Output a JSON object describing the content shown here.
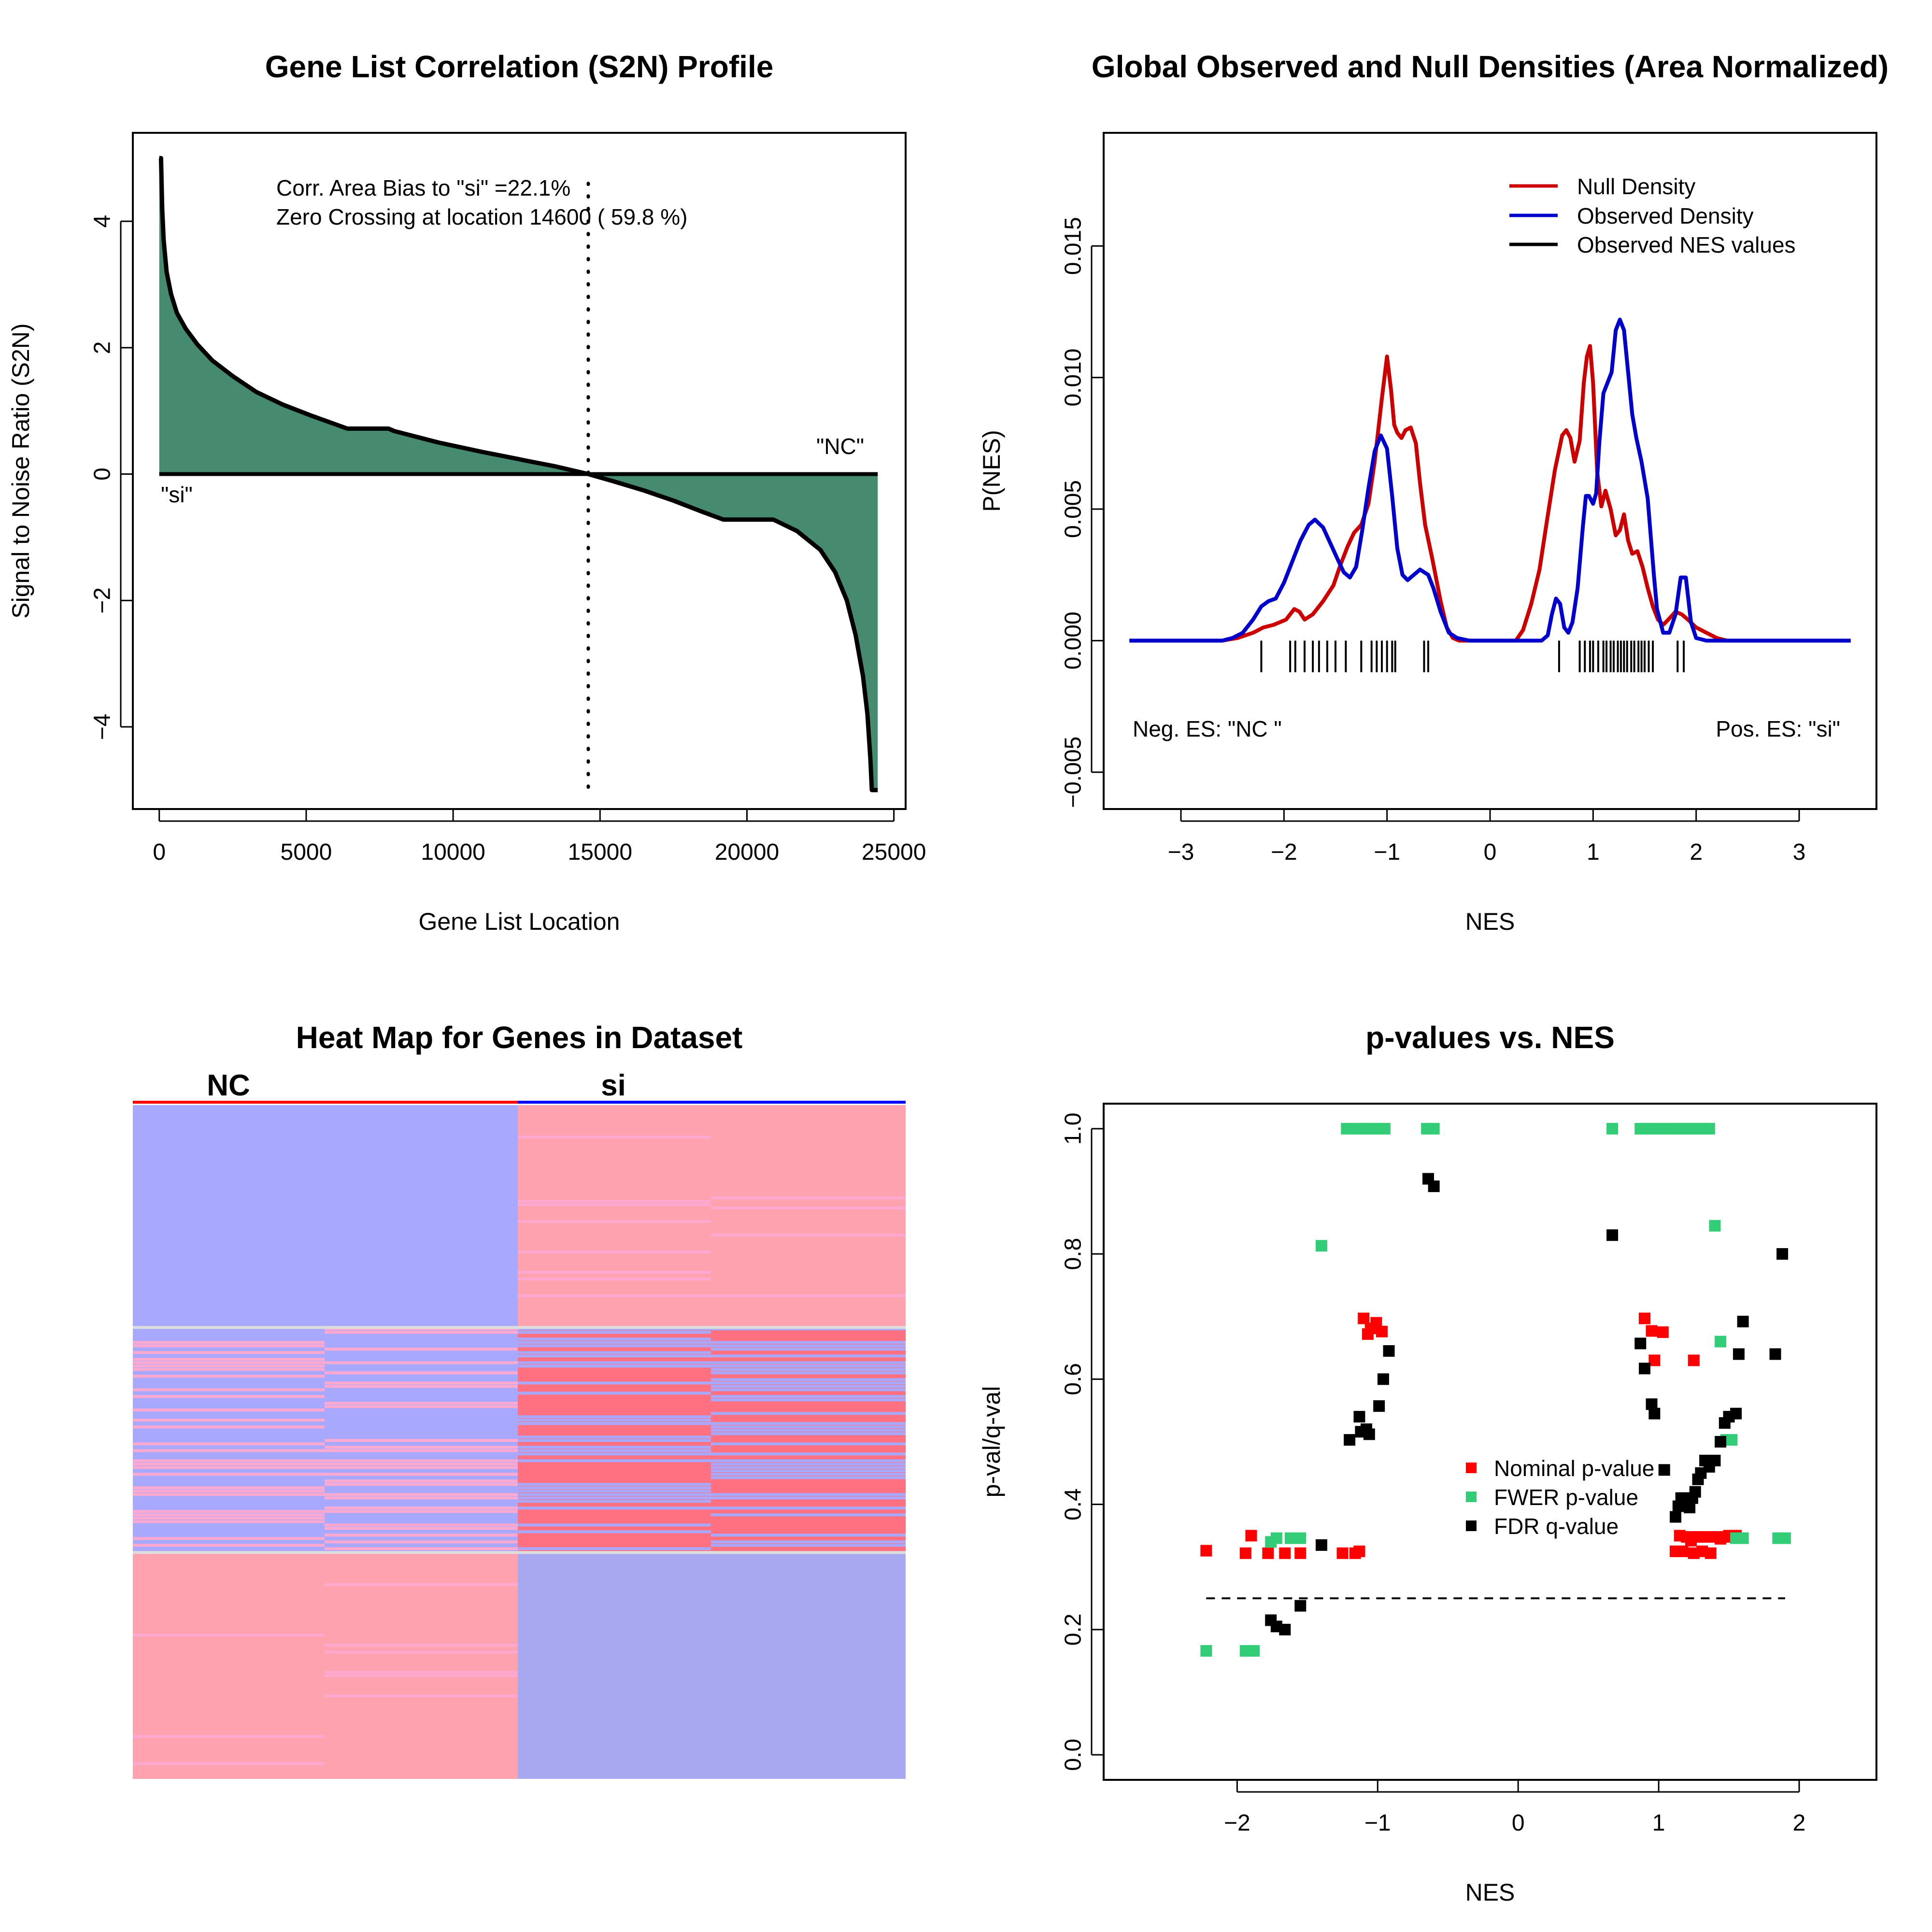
{
  "colors": {
    "s2n_fill": "#468A70",
    "null_density": "#CC0000",
    "observed_density": "#0000CC",
    "heat_red": "#FF7080",
    "heat_red_light": "#FFA2B0",
    "heat_pink": "#FFA8D0",
    "heat_blue": "#A8A8FF",
    "heat_blue_mid": "#A8A8F0",
    "nominal": "#FF0000",
    "fwer": "#33CC77",
    "fdr": "#000000"
  },
  "chart_data": [
    {
      "type": "area",
      "title": "Gene List Correlation (S2N) Profile",
      "xlabel": "Gene List Location",
      "ylabel": "Signal to Noise Ratio (S2N)",
      "xlim": [
        -900,
        25400
      ],
      "ylim": [
        -5.3,
        5.4
      ],
      "xticks": [
        0,
        5000,
        10000,
        15000,
        20000,
        25000
      ],
      "xtick_labels": [
        "0",
        "5000",
        "10000",
        "15000",
        "20000",
        "25000"
      ],
      "yticks": [
        -4,
        -2,
        0,
        2,
        4
      ],
      "ytick_labels": [
        "−4",
        "−2",
        "0",
        "2",
        "4"
      ],
      "x": [
        0,
        60,
        100,
        150,
        250,
        400,
        600,
        900,
        1300,
        1800,
        2500,
        3300,
        4200,
        5200,
        6400,
        7800,
        8000,
        9500,
        11000,
        12200,
        12400,
        13500,
        14600,
        15500,
        16500,
        17500,
        18500,
        19200,
        20900,
        21700,
        22500,
        23000,
        23400,
        23700,
        23950,
        24100,
        24200,
        24250,
        24300,
        24450
      ],
      "y": [
        5.0,
        5.0,
        4.2,
        3.7,
        3.2,
        2.85,
        2.55,
        2.3,
        2.05,
        1.8,
        1.55,
        1.3,
        1.1,
        0.92,
        0.72,
        0.72,
        0.68,
        0.5,
        0.35,
        0.24,
        0.22,
        0.12,
        0.0,
        -0.12,
        -0.26,
        -0.42,
        -0.6,
        -0.72,
        -0.72,
        -0.9,
        -1.2,
        -1.55,
        -2.0,
        -2.55,
        -3.2,
        -3.8,
        -4.5,
        -5.0,
        -5.0,
        -5.0
      ],
      "annotations": [
        "Corr. Area Bias to \"si\" =22.1%",
        "Zero Crossing at location  14600  ( 59.8  %)"
      ],
      "zero_crossing": 14600,
      "label_left": "\"si\"",
      "label_right": "\"NC\""
    },
    {
      "type": "line",
      "title": "Global Observed and Null Densities (Area Normalized)",
      "xlabel": "NES",
      "ylabel": "P(NES)",
      "xlim": [
        -3.75,
        3.75
      ],
      "ylim": [
        -0.0064,
        0.0193
      ],
      "xticks": [
        -3,
        -2,
        -1,
        0,
        1,
        2,
        3
      ],
      "xtick_labels": [
        "−3",
        "−2",
        "−1",
        "0",
        "1",
        "2",
        "3"
      ],
      "yticks": [
        -0.005,
        0.0,
        0.005,
        0.01,
        0.015
      ],
      "ytick_labels": [
        "−0.005",
        "0.000",
        "0.005",
        "0.010",
        "0.015"
      ],
      "legend": [
        "Null Density",
        "Observed Density",
        "Observed NES values"
      ],
      "legend_position": "top-right",
      "series": [
        {
          "name": "Null Density",
          "x": [
            -3.5,
            -2.6,
            -2.45,
            -2.3,
            -2.2,
            -2.1,
            -1.98,
            -1.9,
            -1.85,
            -1.8,
            -1.72,
            -1.62,
            -1.52,
            -1.45,
            -1.38,
            -1.32,
            -1.25,
            -1.18,
            -1.12,
            -1.05,
            -1.0,
            -0.96,
            -0.93,
            -0.9,
            -0.86,
            -0.82,
            -0.77,
            -0.72,
            -0.68,
            -0.63,
            -0.56,
            -0.48,
            -0.42,
            -0.36,
            -0.3,
            -0.2,
            0.0,
            0.25,
            0.32,
            0.4,
            0.48,
            0.55,
            0.63,
            0.7,
            0.74,
            0.78,
            0.82,
            0.87,
            0.91,
            0.94,
            0.97,
            1.0,
            1.04,
            1.08,
            1.12,
            1.17,
            1.22,
            1.26,
            1.3,
            1.34,
            1.38,
            1.43,
            1.48,
            1.53,
            1.58,
            1.63,
            1.68,
            1.73,
            1.8,
            1.86,
            1.92,
            2.0,
            2.1,
            2.2,
            2.3,
            2.45,
            3.5
          ],
          "y": [
            0,
            0,
            0.0001,
            0.0003,
            0.0005,
            0.0006,
            0.0008,
            0.0012,
            0.0011,
            0.0008,
            0.001,
            0.0015,
            0.0021,
            0.0029,
            0.0036,
            0.0041,
            0.0044,
            0.0052,
            0.0068,
            0.0092,
            0.0108,
            0.0095,
            0.0082,
            0.0079,
            0.0077,
            0.008,
            0.0081,
            0.0075,
            0.006,
            0.0044,
            0.0031,
            0.0015,
            0.0005,
            0.0001,
            0,
            0,
            0,
            0,
            0.0004,
            0.0014,
            0.0027,
            0.0045,
            0.0065,
            0.0078,
            0.008,
            0.0077,
            0.0068,
            0.0076,
            0.0098,
            0.0108,
            0.0112,
            0.0098,
            0.0064,
            0.0051,
            0.0057,
            0.005,
            0.004,
            0.0042,
            0.0048,
            0.0038,
            0.0033,
            0.0034,
            0.0028,
            0.002,
            0.0013,
            0.0008,
            0.0006,
            0.0008,
            0.0011,
            0.001,
            0.0008,
            0.0005,
            0.0003,
            0.0001,
            0,
            0,
            0
          ]
        },
        {
          "name": "Observed Density",
          "x": [
            -3.5,
            -2.6,
            -2.5,
            -2.4,
            -2.3,
            -2.22,
            -2.15,
            -2.08,
            -2.0,
            -1.92,
            -1.84,
            -1.76,
            -1.7,
            -1.62,
            -1.55,
            -1.48,
            -1.42,
            -1.36,
            -1.3,
            -1.24,
            -1.18,
            -1.12,
            -1.06,
            -1.0,
            -0.95,
            -0.9,
            -0.85,
            -0.8,
            -0.74,
            -0.68,
            -0.6,
            -0.55,
            -0.48,
            -0.4,
            -0.32,
            -0.2,
            0.0,
            0.4,
            0.5,
            0.56,
            0.6,
            0.64,
            0.68,
            0.72,
            0.76,
            0.8,
            0.85,
            0.9,
            0.93,
            0.96,
            1.0,
            1.03,
            1.06,
            1.1,
            1.14,
            1.18,
            1.22,
            1.26,
            1.3,
            1.34,
            1.38,
            1.42,
            1.47,
            1.53,
            1.59,
            1.62,
            1.68,
            1.74,
            1.8,
            1.85,
            1.9,
            1.95,
            2.0,
            2.1,
            3.5
          ],
          "y": [
            0,
            0,
            0.0001,
            0.0003,
            0.0008,
            0.0013,
            0.0015,
            0.0016,
            0.0022,
            0.003,
            0.0038,
            0.0044,
            0.0046,
            0.0043,
            0.0037,
            0.0031,
            0.0026,
            0.0024,
            0.0028,
            0.0042,
            0.0058,
            0.0072,
            0.0078,
            0.0073,
            0.0055,
            0.0035,
            0.0025,
            0.0023,
            0.0025,
            0.0027,
            0.0025,
            0.002,
            0.0011,
            0.0003,
            0.0001,
            0,
            0,
            0,
            0,
            0.0002,
            0.001,
            0.0016,
            0.0014,
            0.0005,
            0.0003,
            0.0007,
            0.002,
            0.0043,
            0.0055,
            0.0055,
            0.0052,
            0.0056,
            0.0075,
            0.0094,
            0.0098,
            0.0102,
            0.0118,
            0.0122,
            0.0118,
            0.0102,
            0.0086,
            0.0077,
            0.0068,
            0.0054,
            0.0025,
            0.0012,
            0.0003,
            0.0003,
            0.001,
            0.0024,
            0.0024,
            0.0007,
            0.0001,
            0,
            0
          ]
        }
      ],
      "observed_nes": [
        -2.22,
        -1.94,
        -1.89,
        -1.8,
        -1.72,
        -1.66,
        -1.58,
        -1.5,
        -1.4,
        -1.25,
        -1.15,
        -1.1,
        -1.05,
        -1.0,
        -0.95,
        -0.92,
        -0.64,
        -0.6,
        0.67,
        0.87,
        0.92,
        0.97,
        1.0,
        1.05,
        1.1,
        1.13,
        1.17,
        1.2,
        1.24,
        1.27,
        1.3,
        1.33,
        1.37,
        1.4,
        1.44,
        1.47,
        1.5,
        1.54,
        1.58,
        1.82,
        1.88
      ],
      "annotations": [
        "Neg. ES: \"NC \"",
        "Pos. ES: \"si\""
      ]
    },
    {
      "type": "heatmap",
      "title": "Heat Map for Genes in Dataset",
      "column_groups": [
        "NC",
        "si"
      ],
      "columns": 4,
      "legend": []
    },
    {
      "type": "scatter",
      "title": "p-values vs. NES",
      "xlabel": "NES",
      "ylabel": "p-val/q-val",
      "xlim": [
        -2.95,
        2.55
      ],
      "ylim": [
        -0.04,
        1.04
      ],
      "xticks": [
        -2,
        -1,
        0,
        1,
        2
      ],
      "xtick_labels": [
        "−2",
        "−1",
        "0",
        "1",
        "2"
      ],
      "yticks": [
        0.0,
        0.2,
        0.4,
        0.6,
        0.8,
        1.0
      ],
      "ytick_labels": [
        "0.0",
        "0.2",
        "0.4",
        "0.6",
        "0.8",
        "1.0"
      ],
      "threshold": 0.25,
      "legend": [
        "Nominal p-value",
        "FWER p-value",
        "FDR q-value"
      ],
      "legend_position": "center-right",
      "series": [
        {
          "name": "Nominal p-value",
          "points": [
            [
              -2.22,
              0.326
            ],
            [
              -1.94,
              0.322
            ],
            [
              -1.9,
              0.35
            ],
            [
              -1.78,
              0.322
            ],
            [
              -1.66,
              0.322
            ],
            [
              -1.55,
              0.322
            ],
            [
              -1.25,
              0.322
            ],
            [
              -1.16,
              0.322
            ],
            [
              -1.13,
              0.325
            ],
            [
              -1.1,
              0.697
            ],
            [
              -1.07,
              0.672
            ],
            [
              -1.05,
              0.681
            ],
            [
              -1.01,
              0.69
            ],
            [
              -0.97,
              0.676
            ],
            [
              0.9,
              0.697
            ],
            [
              0.95,
              0.677
            ],
            [
              0.97,
              0.63
            ],
            [
              1.03,
              0.675
            ],
            [
              1.12,
              0.325
            ],
            [
              1.15,
              0.35
            ],
            [
              1.17,
              0.325
            ],
            [
              1.2,
              0.348
            ],
            [
              1.23,
              0.342
            ],
            [
              1.25,
              0.322
            ],
            [
              1.28,
              0.348
            ],
            [
              1.31,
              0.325
            ],
            [
              1.34,
              0.348
            ],
            [
              1.37,
              0.322
            ],
            [
              1.4,
              0.348
            ],
            [
              1.44,
              0.345
            ],
            [
              1.47,
              0.348
            ],
            [
              1.25,
              0.63
            ],
            [
              1.5,
              0.35
            ],
            [
              1.55,
              0.35
            ]
          ]
        },
        {
          "name": "FWER p-value",
          "points": [
            [
              -2.22,
              0.166
            ],
            [
              -1.94,
              0.166
            ],
            [
              -1.88,
              0.166
            ],
            [
              -1.76,
              0.34
            ],
            [
              -1.72,
              0.346
            ],
            [
              -1.62,
              0.346
            ],
            [
              -1.55,
              0.346
            ],
            [
              -1.4,
              0.813
            ],
            [
              -1.22,
              1.0
            ],
            [
              -1.15,
              1.0
            ],
            [
              -1.1,
              1.0
            ],
            [
              -1.05,
              1.0
            ],
            [
              -1.0,
              1.0
            ],
            [
              -0.95,
              1.0
            ],
            [
              -0.65,
              1.0
            ],
            [
              -0.6,
              1.0
            ],
            [
              0.67,
              1.0
            ],
            [
              0.87,
              1.0
            ],
            [
              0.92,
              1.0
            ],
            [
              0.97,
              1.0
            ],
            [
              1.02,
              1.0
            ],
            [
              1.08,
              1.0
            ],
            [
              1.12,
              1.0
            ],
            [
              1.16,
              1.0
            ],
            [
              1.2,
              1.0
            ],
            [
              1.24,
              1.0
            ],
            [
              1.28,
              1.0
            ],
            [
              1.32,
              1.0
            ],
            [
              1.36,
              1.0
            ],
            [
              1.4,
              0.845
            ],
            [
              1.44,
              0.66
            ],
            [
              1.48,
              0.503
            ],
            [
              1.52,
              0.503
            ],
            [
              1.55,
              0.346
            ],
            [
              1.6,
              0.346
            ],
            [
              1.85,
              0.346
            ],
            [
              1.9,
              0.346
            ]
          ]
        },
        {
          "name": "FDR q-value",
          "points": [
            [
              -1.76,
              0.215
            ],
            [
              -1.72,
              0.205
            ],
            [
              -1.66,
              0.2
            ],
            [
              -1.55,
              0.238
            ],
            [
              -1.4,
              0.335
            ],
            [
              -1.2,
              0.503
            ],
            [
              -1.13,
              0.54
            ],
            [
              -1.12,
              0.516
            ],
            [
              -1.08,
              0.52
            ],
            [
              -1.06,
              0.512
            ],
            [
              -0.99,
              0.557
            ],
            [
              -0.96,
              0.6
            ],
            [
              -0.92,
              0.645
            ],
            [
              -0.64,
              0.92
            ],
            [
              -0.6,
              0.908
            ],
            [
              0.67,
              0.83
            ],
            [
              0.87,
              0.657
            ],
            [
              0.9,
              0.617
            ],
            [
              0.95,
              0.56
            ],
            [
              0.97,
              0.545
            ],
            [
              1.04,
              0.455
            ],
            [
              1.12,
              0.38
            ],
            [
              1.14,
              0.397
            ],
            [
              1.16,
              0.41
            ],
            [
              1.18,
              0.41
            ],
            [
              1.22,
              0.395
            ],
            [
              1.24,
              0.41
            ],
            [
              1.26,
              0.42
            ],
            [
              1.28,
              0.44
            ],
            [
              1.3,
              0.45
            ],
            [
              1.33,
              0.47
            ],
            [
              1.36,
              0.46
            ],
            [
              1.4,
              0.47
            ],
            [
              1.44,
              0.5
            ],
            [
              1.47,
              0.53
            ],
            [
              1.5,
              0.54
            ],
            [
              1.55,
              0.545
            ],
            [
              1.57,
              0.64
            ],
            [
              1.6,
              0.692
            ],
            [
              1.83,
              0.64
            ],
            [
              1.88,
              0.8
            ]
          ]
        }
      ]
    }
  ]
}
